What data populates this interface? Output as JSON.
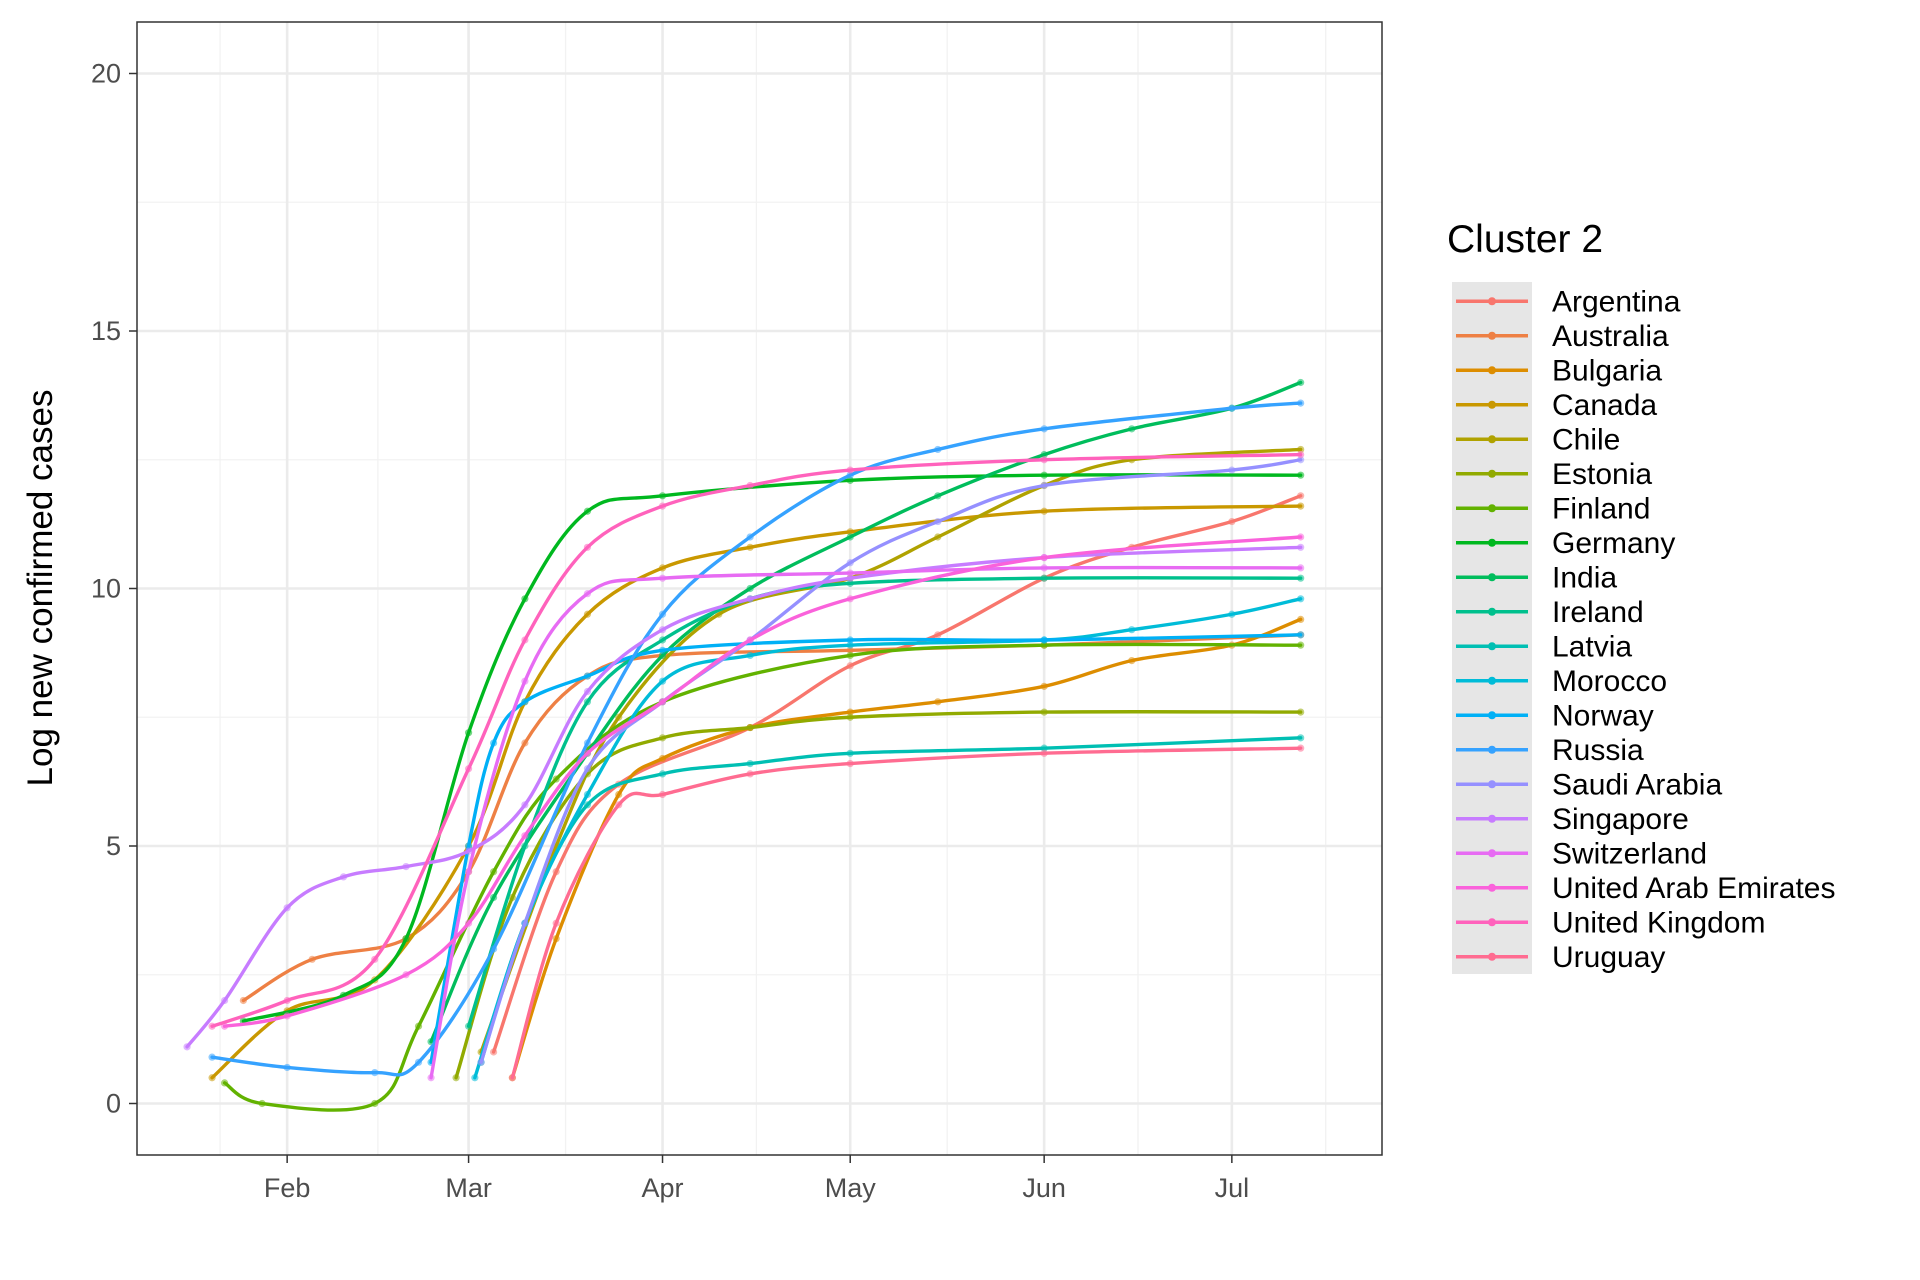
{
  "chart_data": {
    "type": "line",
    "title": "",
    "xlabel": "",
    "ylabel": "Log new confirmed cases",
    "x_axis": {
      "type": "date",
      "range": [
        "2020-01-08",
        "2020-07-25"
      ],
      "ticks": [
        {
          "date": "2020-02-01",
          "label": "Feb"
        },
        {
          "date": "2020-03-01",
          "label": "Mar"
        },
        {
          "date": "2020-04-01",
          "label": "Apr"
        },
        {
          "date": "2020-05-01",
          "label": "May"
        },
        {
          "date": "2020-06-01",
          "label": "Jun"
        },
        {
          "date": "2020-07-01",
          "label": "Jul"
        }
      ]
    },
    "y_axis": {
      "range": [
        -1,
        21
      ],
      "ticks": [
        0,
        5,
        10,
        15,
        20
      ]
    },
    "grid": true,
    "legend": {
      "title": "Cluster 2",
      "placement": "right"
    },
    "series": [
      {
        "name": "Argentina",
        "color": "#F8766D",
        "points": [
          [
            "2020-03-05",
            1.0
          ],
          [
            "2020-03-15",
            4.5
          ],
          [
            "2020-03-25",
            6.2
          ],
          [
            "2020-04-15",
            7.3
          ],
          [
            "2020-05-01",
            8.5
          ],
          [
            "2020-05-15",
            9.1
          ],
          [
            "2020-06-01",
            10.2
          ],
          [
            "2020-06-15",
            10.8
          ],
          [
            "2020-07-01",
            11.3
          ],
          [
            "2020-07-12",
            11.8
          ]
        ]
      },
      {
        "name": "Australia",
        "color": "#EE8044",
        "points": [
          [
            "2020-01-25",
            2.0
          ],
          [
            "2020-02-05",
            2.8
          ],
          [
            "2020-02-20",
            3.2
          ],
          [
            "2020-03-01",
            4.5
          ],
          [
            "2020-03-10",
            7.0
          ],
          [
            "2020-03-20",
            8.3
          ],
          [
            "2020-04-01",
            8.7
          ],
          [
            "2020-05-01",
            8.8
          ],
          [
            "2020-06-01",
            8.9
          ],
          [
            "2020-07-12",
            9.1
          ]
        ]
      },
      {
        "name": "Bulgaria",
        "color": "#DD8D00",
        "points": [
          [
            "2020-03-08",
            0.5
          ],
          [
            "2020-03-15",
            3.2
          ],
          [
            "2020-03-25",
            6.0
          ],
          [
            "2020-04-01",
            6.7
          ],
          [
            "2020-04-15",
            7.3
          ],
          [
            "2020-05-01",
            7.6
          ],
          [
            "2020-05-15",
            7.8
          ],
          [
            "2020-06-01",
            8.1
          ],
          [
            "2020-06-15",
            8.6
          ],
          [
            "2020-07-01",
            8.9
          ],
          [
            "2020-07-12",
            9.4
          ]
        ]
      },
      {
        "name": "Canada",
        "color": "#C99800",
        "points": [
          [
            "2020-01-20",
            0.5
          ],
          [
            "2020-02-01",
            1.8
          ],
          [
            "2020-02-15",
            2.4
          ],
          [
            "2020-03-01",
            5.0
          ],
          [
            "2020-03-10",
            7.8
          ],
          [
            "2020-03-20",
            9.5
          ],
          [
            "2020-04-01",
            10.4
          ],
          [
            "2020-04-15",
            10.8
          ],
          [
            "2020-05-01",
            11.1
          ],
          [
            "2020-06-01",
            11.5
          ],
          [
            "2020-07-12",
            11.6
          ]
        ]
      },
      {
        "name": "Chile",
        "color": "#B0A200",
        "points": [
          [
            "2020-03-03",
            1.0
          ],
          [
            "2020-03-15",
            5.0
          ],
          [
            "2020-03-25",
            7.5
          ],
          [
            "2020-04-10",
            9.5
          ],
          [
            "2020-05-01",
            10.2
          ],
          [
            "2020-05-15",
            11.0
          ],
          [
            "2020-06-01",
            12.0
          ],
          [
            "2020-06-15",
            12.5
          ],
          [
            "2020-07-12",
            12.7
          ]
        ]
      },
      {
        "name": "Estonia",
        "color": "#91AA00",
        "points": [
          [
            "2020-02-28",
            0.5
          ],
          [
            "2020-03-08",
            4.0
          ],
          [
            "2020-03-20",
            6.4
          ],
          [
            "2020-04-01",
            7.1
          ],
          [
            "2020-04-15",
            7.3
          ],
          [
            "2020-05-01",
            7.5
          ],
          [
            "2020-06-01",
            7.6
          ],
          [
            "2020-07-12",
            7.6
          ]
        ]
      },
      {
        "name": "Finland",
        "color": "#62B200",
        "points": [
          [
            "2020-01-22",
            0.4
          ],
          [
            "2020-01-28",
            0.0
          ],
          [
            "2020-02-15",
            0.0
          ],
          [
            "2020-02-22",
            1.5
          ],
          [
            "2020-03-05",
            4.5
          ],
          [
            "2020-03-15",
            6.3
          ],
          [
            "2020-04-01",
            7.8
          ],
          [
            "2020-05-01",
            8.7
          ],
          [
            "2020-06-01",
            8.9
          ],
          [
            "2020-07-12",
            8.9
          ]
        ]
      },
      {
        "name": "Germany",
        "color": "#00B81F",
        "points": [
          [
            "2020-01-25",
            1.6
          ],
          [
            "2020-02-10",
            2.1
          ],
          [
            "2020-02-20",
            3.2
          ],
          [
            "2020-03-01",
            7.2
          ],
          [
            "2020-03-10",
            9.8
          ],
          [
            "2020-03-20",
            11.5
          ],
          [
            "2020-04-01",
            11.8
          ],
          [
            "2020-05-01",
            12.1
          ],
          [
            "2020-06-01",
            12.2
          ],
          [
            "2020-07-12",
            12.2
          ]
        ]
      },
      {
        "name": "India",
        "color": "#00BD5C",
        "points": [
          [
            "2020-02-24",
            1.2
          ],
          [
            "2020-03-05",
            4.0
          ],
          [
            "2020-03-20",
            6.8
          ],
          [
            "2020-04-01",
            8.7
          ],
          [
            "2020-04-15",
            10.0
          ],
          [
            "2020-05-01",
            11.0
          ],
          [
            "2020-05-15",
            11.8
          ],
          [
            "2020-06-01",
            12.6
          ],
          [
            "2020-06-15",
            13.1
          ],
          [
            "2020-07-01",
            13.5
          ],
          [
            "2020-07-12",
            14.0
          ]
        ]
      },
      {
        "name": "Ireland",
        "color": "#00C08D",
        "points": [
          [
            "2020-03-01",
            1.5
          ],
          [
            "2020-03-10",
            5.0
          ],
          [
            "2020-03-20",
            7.8
          ],
          [
            "2020-04-01",
            9.0
          ],
          [
            "2020-04-15",
            9.8
          ],
          [
            "2020-05-01",
            10.1
          ],
          [
            "2020-06-01",
            10.2
          ],
          [
            "2020-07-12",
            10.2
          ]
        ]
      },
      {
        "name": "Latvia",
        "color": "#00BFB3",
        "points": [
          [
            "2020-03-03",
            0.8
          ],
          [
            "2020-03-10",
            3.5
          ],
          [
            "2020-03-20",
            5.8
          ],
          [
            "2020-04-01",
            6.4
          ],
          [
            "2020-04-15",
            6.6
          ],
          [
            "2020-05-01",
            6.8
          ],
          [
            "2020-06-01",
            6.9
          ],
          [
            "2020-07-12",
            7.1
          ]
        ]
      },
      {
        "name": "Morocco",
        "color": "#00BCD8",
        "points": [
          [
            "2020-03-02",
            0.5
          ],
          [
            "2020-03-10",
            3.5
          ],
          [
            "2020-03-20",
            6.0
          ],
          [
            "2020-04-01",
            8.2
          ],
          [
            "2020-04-15",
            8.7
          ],
          [
            "2020-05-01",
            8.9
          ],
          [
            "2020-06-01",
            9.0
          ],
          [
            "2020-06-15",
            9.2
          ],
          [
            "2020-07-01",
            9.5
          ],
          [
            "2020-07-12",
            9.8
          ]
        ]
      },
      {
        "name": "Norway",
        "color": "#00B0F6",
        "points": [
          [
            "2020-02-24",
            0.8
          ],
          [
            "2020-03-01",
            5.0
          ],
          [
            "2020-03-05",
            7.0
          ],
          [
            "2020-03-10",
            7.8
          ],
          [
            "2020-03-20",
            8.3
          ],
          [
            "2020-04-01",
            8.8
          ],
          [
            "2020-05-01",
            9.0
          ],
          [
            "2020-06-01",
            9.0
          ],
          [
            "2020-07-12",
            9.1
          ]
        ]
      },
      {
        "name": "Russia",
        "color": "#35A2FF",
        "points": [
          [
            "2020-01-20",
            0.9
          ],
          [
            "2020-02-01",
            0.7
          ],
          [
            "2020-02-15",
            0.6
          ],
          [
            "2020-02-22",
            0.8
          ],
          [
            "2020-03-05",
            3.0
          ],
          [
            "2020-03-20",
            7.0
          ],
          [
            "2020-04-01",
            9.5
          ],
          [
            "2020-04-15",
            11.0
          ],
          [
            "2020-05-01",
            12.2
          ],
          [
            "2020-05-15",
            12.7
          ],
          [
            "2020-06-01",
            13.1
          ],
          [
            "2020-07-01",
            13.5
          ],
          [
            "2020-07-12",
            13.6
          ]
        ]
      },
      {
        "name": "Saudi Arabia",
        "color": "#9590FF",
        "points": [
          [
            "2020-03-03",
            0.8
          ],
          [
            "2020-03-10",
            3.5
          ],
          [
            "2020-03-20",
            6.5
          ],
          [
            "2020-04-01",
            7.8
          ],
          [
            "2020-04-15",
            9.0
          ],
          [
            "2020-05-01",
            10.5
          ],
          [
            "2020-05-15",
            11.3
          ],
          [
            "2020-06-01",
            12.0
          ],
          [
            "2020-07-01",
            12.3
          ],
          [
            "2020-07-12",
            12.5
          ]
        ]
      },
      {
        "name": "Singapore",
        "color": "#C77CFF",
        "points": [
          [
            "2020-01-16",
            1.1
          ],
          [
            "2020-01-22",
            2.0
          ],
          [
            "2020-02-01",
            3.8
          ],
          [
            "2020-02-10",
            4.4
          ],
          [
            "2020-02-20",
            4.6
          ],
          [
            "2020-03-01",
            4.9
          ],
          [
            "2020-03-10",
            5.8
          ],
          [
            "2020-03-20",
            8.0
          ],
          [
            "2020-04-01",
            9.2
          ],
          [
            "2020-04-15",
            9.8
          ],
          [
            "2020-05-01",
            10.2
          ],
          [
            "2020-06-01",
            10.6
          ],
          [
            "2020-07-12",
            10.8
          ]
        ]
      },
      {
        "name": "Switzerland",
        "color": "#E76BF3",
        "points": [
          [
            "2020-02-24",
            0.5
          ],
          [
            "2020-03-01",
            4.5
          ],
          [
            "2020-03-10",
            8.2
          ],
          [
            "2020-03-20",
            9.9
          ],
          [
            "2020-04-01",
            10.2
          ],
          [
            "2020-05-01",
            10.3
          ],
          [
            "2020-06-01",
            10.4
          ],
          [
            "2020-07-12",
            10.4
          ]
        ]
      },
      {
        "name": "United Arab Emirates",
        "color": "#FA62DB",
        "points": [
          [
            "2020-01-22",
            1.5
          ],
          [
            "2020-02-01",
            1.7
          ],
          [
            "2020-02-20",
            2.5
          ],
          [
            "2020-03-01",
            3.5
          ],
          [
            "2020-03-10",
            5.2
          ],
          [
            "2020-03-20",
            6.8
          ],
          [
            "2020-04-01",
            7.8
          ],
          [
            "2020-04-15",
            9.0
          ],
          [
            "2020-05-01",
            9.8
          ],
          [
            "2020-06-01",
            10.6
          ],
          [
            "2020-07-12",
            11.0
          ]
        ]
      },
      {
        "name": "United Kingdom",
        "color": "#FF62BC",
        "points": [
          [
            "2020-01-20",
            1.5
          ],
          [
            "2020-02-01",
            2.0
          ],
          [
            "2020-02-15",
            2.8
          ],
          [
            "2020-03-01",
            6.5
          ],
          [
            "2020-03-10",
            9.0
          ],
          [
            "2020-03-20",
            10.8
          ],
          [
            "2020-04-01",
            11.6
          ],
          [
            "2020-04-15",
            12.0
          ],
          [
            "2020-05-01",
            12.3
          ],
          [
            "2020-06-01",
            12.5
          ],
          [
            "2020-07-12",
            12.6
          ]
        ]
      },
      {
        "name": "Uruguay",
        "color": "#FF6C91",
        "points": [
          [
            "2020-03-08",
            0.5
          ],
          [
            "2020-03-15",
            3.5
          ],
          [
            "2020-03-25",
            5.8
          ],
          [
            "2020-04-01",
            6.0
          ],
          [
            "2020-04-15",
            6.4
          ],
          [
            "2020-05-01",
            6.6
          ],
          [
            "2020-06-01",
            6.8
          ],
          [
            "2020-07-12",
            6.9
          ]
        ]
      }
    ]
  }
}
